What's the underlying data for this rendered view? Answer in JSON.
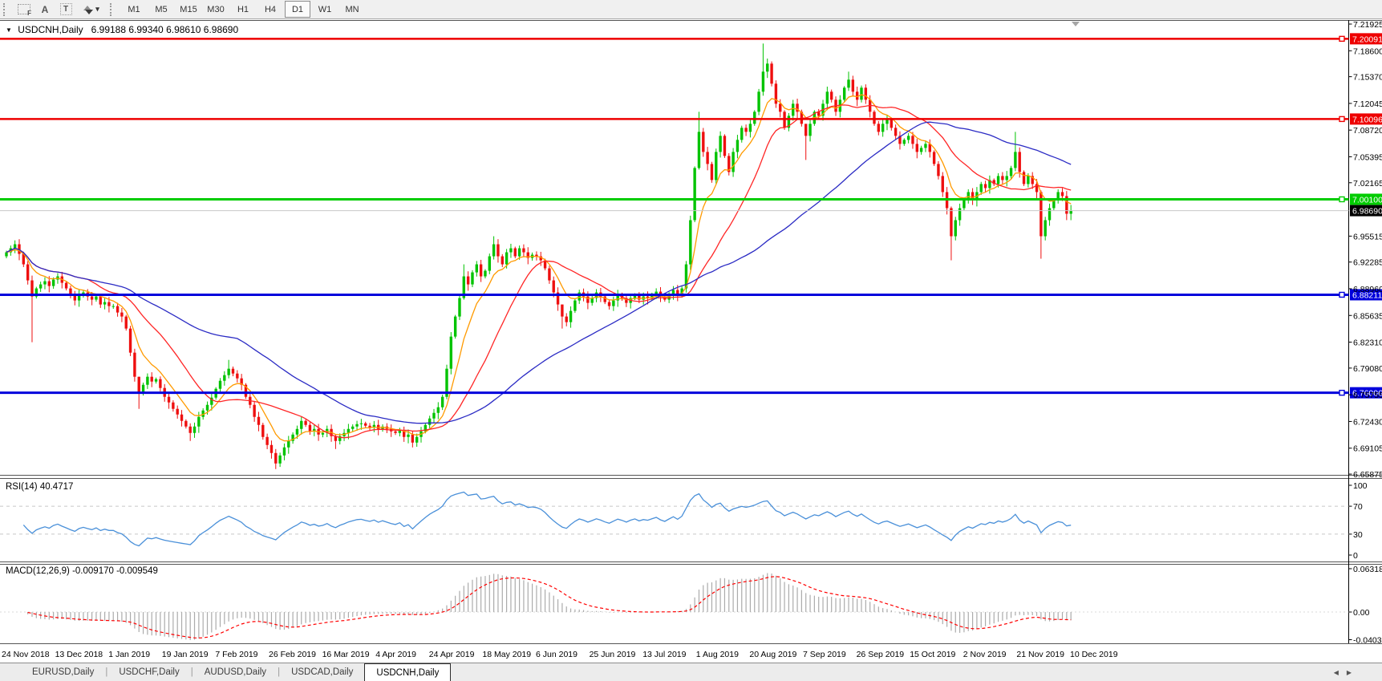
{
  "toolbar": {
    "tools": [
      {
        "name": "fibonacci-tool",
        "glyph": "F"
      },
      {
        "name": "text-tool",
        "glyph": "A"
      },
      {
        "name": "label-tool",
        "glyph": "T"
      },
      {
        "name": "arrows-tool",
        "glyph": "arrows"
      }
    ],
    "dropdown_caret": "▾",
    "timeframes": [
      {
        "label": "M1",
        "active": false
      },
      {
        "label": "M5",
        "active": false
      },
      {
        "label": "M15",
        "active": false
      },
      {
        "label": "M30",
        "active": false
      },
      {
        "label": "H1",
        "active": false
      },
      {
        "label": "H4",
        "active": false
      },
      {
        "label": "D1",
        "active": true
      },
      {
        "label": "W1",
        "active": false
      },
      {
        "label": "MN",
        "active": false
      }
    ]
  },
  "chart": {
    "symbol_title": "USDCNH,Daily",
    "ohlc_text": "6.99188 6.99340 6.98610 6.98690",
    "dropdown_triangle": "▼"
  },
  "price_axis": {
    "ticks": [
      "7.21925",
      "7.18600",
      "7.15370",
      "7.12045",
      "7.08720",
      "7.05395",
      "7.02165",
      "6.95515",
      "6.92285",
      "6.88960",
      "6.85635",
      "6.82310",
      "6.79080",
      "6.75755",
      "6.72430",
      "6.69105",
      "6.65875"
    ]
  },
  "rsi_panel": {
    "label": "RSI(14) 40.4717",
    "period": 14,
    "last_value": "40.4717",
    "ticks": [
      "100",
      "70",
      "30",
      "0"
    ],
    "tick_values": [
      100,
      70,
      30,
      0
    ],
    "dashed_levels": [
      70,
      30
    ]
  },
  "macd_panel": {
    "label": "MACD(12,26,9) -0.009170 -0.009549",
    "params": {
      "fast": 12,
      "slow": 26,
      "signal": 9
    },
    "last_values": [
      "-0.009170",
      "-0.009549"
    ],
    "ticks": [
      {
        "label": "0.063184",
        "value": 0.063184
      },
      {
        "label": "0.00",
        "value": 0
      },
      {
        "label": "-0.040355",
        "value": -0.040355
      }
    ]
  },
  "time_axis": {
    "labels": [
      "24 Nov 2018",
      "13 Dec 2018",
      "1 Jan 2019",
      "19 Jan 2019",
      "7 Feb 2019",
      "26 Feb 2019",
      "16 Mar 2019",
      "4 Apr 2019",
      "24 Apr 2019",
      "18 May 2019",
      "6 Jun 2019",
      "25 Jun 2019",
      "13 Jul 2019",
      "1 Aug 2019",
      "20 Aug 2019",
      "7 Sep 2019",
      "26 Sep 2019",
      "15 Oct 2019",
      "2 Nov 2019",
      "21 Nov 2019",
      "10 Dec 2019"
    ]
  },
  "tabs": {
    "items": [
      {
        "label": "EURUSD,Daily",
        "active": false
      },
      {
        "label": "USDCHF,Daily",
        "active": false
      },
      {
        "label": "AUDUSD,Daily",
        "active": false
      },
      {
        "label": "USDCAD,Daily",
        "active": false
      },
      {
        "label": "USDCNH,Daily",
        "active": true
      }
    ],
    "separator": "|",
    "scroll_left": "◀",
    "scroll_right": "▶"
  },
  "chart_data": {
    "type": "candlestick",
    "symbol": "USDCNH",
    "timeframe": "Daily",
    "x_range": [
      "24 Nov 2018",
      "10 Dec 2019"
    ],
    "ylim": [
      6.6578,
      7.2242
    ],
    "current_price": 6.9869,
    "first_open": 6.93,
    "closes": [
      6.935,
      6.94,
      6.945,
      6.933,
      6.92,
      6.9,
      6.88,
      6.89,
      6.895,
      6.899,
      6.893,
      6.901,
      6.905,
      6.897,
      6.89,
      6.882,
      6.875,
      6.882,
      6.885,
      6.88,
      6.876,
      6.88,
      6.87,
      6.873,
      6.868,
      6.868,
      6.86,
      6.855,
      6.84,
      6.81,
      6.78,
      6.76,
      6.77,
      6.78,
      6.774,
      6.777,
      6.766,
      6.755,
      6.748,
      6.74,
      6.733,
      6.725,
      6.718,
      6.71,
      6.718,
      6.73,
      6.738,
      6.745,
      6.754,
      6.765,
      6.775,
      6.782,
      6.79,
      6.784,
      6.778,
      6.77,
      6.755,
      6.745,
      6.73,
      6.72,
      6.705,
      6.695,
      6.685,
      6.672,
      6.682,
      6.692,
      6.7,
      6.708,
      6.715,
      6.725,
      6.72,
      6.712,
      6.715,
      6.708,
      6.71,
      6.715,
      6.706,
      6.7,
      6.706,
      6.71,
      6.715,
      6.718,
      6.721,
      6.722,
      6.719,
      6.717,
      6.72,
      6.715,
      6.718,
      6.715,
      6.712,
      6.71,
      6.713,
      6.705,
      6.708,
      6.698,
      6.705,
      6.712,
      6.72,
      6.728,
      6.735,
      6.742,
      6.755,
      6.79,
      6.83,
      6.855,
      6.878,
      6.905,
      6.895,
      6.91,
      6.92,
      6.905,
      6.912,
      6.93,
      6.945,
      6.93,
      6.92,
      6.935,
      6.94,
      6.93,
      6.94,
      6.935,
      6.928,
      6.932,
      6.93,
      6.925,
      6.915,
      6.9,
      6.885,
      6.87,
      6.855,
      6.848,
      6.862,
      6.875,
      6.885,
      6.88,
      6.872,
      6.878,
      6.885,
      6.88,
      6.873,
      6.868,
      6.875,
      6.882,
      6.878,
      6.872,
      6.878,
      6.882,
      6.876,
      6.88,
      6.878,
      6.882,
      6.886,
      6.88,
      6.876,
      6.882,
      6.888,
      6.882,
      6.89,
      6.92,
      6.975,
      7.04,
      7.085,
      7.06,
      7.045,
      7.025,
      7.06,
      7.08,
      7.055,
      7.035,
      7.06,
      7.075,
      7.09,
      7.085,
      7.095,
      7.11,
      7.135,
      7.16,
      7.17,
      7.145,
      7.12,
      7.11,
      7.09,
      7.105,
      7.12,
      7.11,
      7.095,
      7.08,
      7.095,
      7.11,
      7.105,
      7.12,
      7.135,
      7.125,
      7.11,
      7.125,
      7.14,
      7.15,
      7.135,
      7.125,
      7.14,
      7.125,
      7.11,
      7.095,
      7.085,
      7.095,
      7.1,
      7.09,
      7.08,
      7.07,
      7.075,
      7.08,
      7.07,
      7.06,
      7.065,
      7.07,
      7.06,
      7.045,
      7.03,
      7.01,
      6.99,
      6.955,
      6.975,
      6.99,
      7.0,
      7.01,
      7.0,
      7.01,
      7.02,
      7.015,
      7.025,
      7.02,
      7.03,
      7.025,
      7.03,
      7.04,
      7.06,
      7.035,
      7.02,
      7.03,
      7.02,
      7.01,
      6.955,
      6.975,
      6.99,
      7.0,
      7.01,
      7.005,
      6.983,
      6.9869
    ],
    "special_wicks": {
      "6": [
        6.906,
        6.823
      ],
      "31": [
        6.772,
        6.74
      ],
      "43": [
        6.722,
        6.7
      ],
      "52": [
        6.801,
        6.778
      ],
      "63": [
        6.69,
        6.665
      ],
      "77": [
        6.708,
        6.69
      ],
      "95": [
        6.712,
        6.692
      ],
      "103": [
        6.795,
        6.752
      ],
      "107": [
        6.92,
        6.876
      ],
      "114": [
        6.955,
        6.926
      ],
      "130": [
        6.869,
        6.84
      ],
      "162": [
        7.11,
        7.038
      ],
      "177": [
        7.195,
        7.13
      ],
      "187": [
        7.095,
        7.05
      ],
      "197": [
        7.16,
        7.136
      ],
      "221": [
        6.992,
        6.925
      ],
      "236": [
        7.085,
        7.036
      ],
      "242": [
        7.012,
        6.927
      ],
      "249": [
        6.994,
        6.975
      ]
    },
    "horizontal_levels": [
      {
        "price": 7.20091,
        "label": "7.20091",
        "color": "#ee0000",
        "width": 2.5
      },
      {
        "price": 7.10096,
        "label": "7.10096",
        "color": "#ee0000",
        "width": 2.5
      },
      {
        "price": 7.001,
        "label": "7.00100",
        "color": "#00cc00",
        "width": 3
      },
      {
        "price": 6.88211,
        "label": "6.88211",
        "color": "#0000dc",
        "width": 3
      },
      {
        "price": 6.76006,
        "label": "6.76006",
        "color": "#0000dc",
        "width": 3
      }
    ],
    "current_price_label": "6.98690",
    "moving_averages": [
      {
        "method": "ema",
        "period": 8,
        "color": "#ff9a00"
      },
      {
        "method": "sma",
        "period": 20,
        "color": "#ff2626"
      },
      {
        "method": "sma",
        "period": 55,
        "color": "#2b2bc4"
      }
    ],
    "indicators": [
      {
        "name": "RSI",
        "period": 14,
        "color": "#4a90d9"
      },
      {
        "name": "MACD",
        "fast": 12,
        "slow": 26,
        "signal": 9,
        "hist_color": "#ababab",
        "signal_color": "#ff0000"
      }
    ],
    "style": {
      "bull": "#00c300",
      "bear": "#ee0f0f",
      "current_line": "#c8c8c8",
      "badge_current_bg": "#000000",
      "axis_color": "#000000",
      "level_dash_color": "#c8c8c8"
    }
  }
}
